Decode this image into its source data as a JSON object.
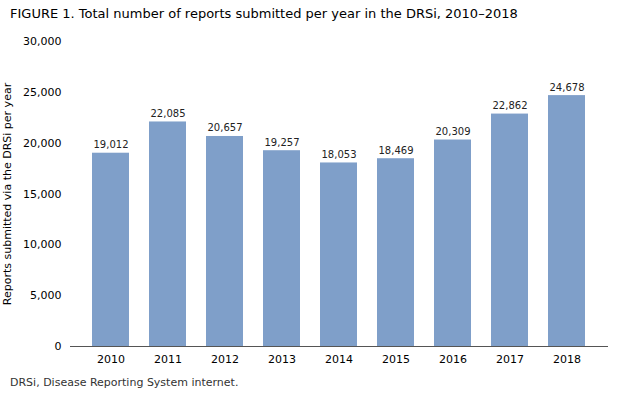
{
  "chart_data": {
    "type": "bar",
    "title": "FIGURE 1.  Total number of reports submitted per year in the DRSi, 2010–2018",
    "caption": "DRSi, Disease Reporting System internet.",
    "ylabel": "Reports submitted via the DRSi per year",
    "categories": [
      "2010",
      "2011",
      "2012",
      "2013",
      "2014",
      "2015",
      "2016",
      "2017",
      "2018"
    ],
    "values": [
      19012,
      22085,
      20657,
      19257,
      18053,
      18469,
      20309,
      22862,
      24678
    ],
    "value_labels": [
      "19,012",
      "22,085",
      "20,657",
      "19,257",
      "18,053",
      "18,469",
      "20,309",
      "22,862",
      "24,678"
    ],
    "data_labels": true,
    "color": "#7f9fc9",
    "ylim": [
      0,
      30000
    ],
    "yticks": [
      0,
      {
        "value": 5000,
        "label": "5,000"
      },
      {
        "value": 10000,
        "label": "10,000"
      },
      {
        "value": 15000,
        "label": "15,000"
      },
      {
        "value": 20000,
        "label": "20,000"
      },
      {
        "value": 25000,
        "label": "25,000"
      },
      {
        "value": 30000,
        "label": "30,000"
      }
    ],
    "grid": false
  }
}
